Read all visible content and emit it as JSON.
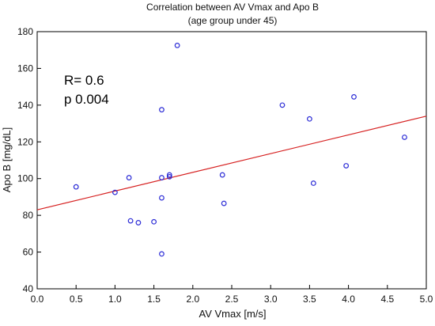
{
  "chart_data": {
    "type": "scatter",
    "title": "Correlation between AV Vmax and Apo B",
    "subtitle": "(age group under 45)",
    "xlabel": "AV Vmax [m/s]",
    "ylabel": "Apo B [mg/dL]",
    "xlim": [
      0.0,
      5.0
    ],
    "ylim": [
      40,
      180
    ],
    "x_ticks": [
      "0.0",
      "0.5",
      "1.0",
      "1.5",
      "2.0",
      "2.5",
      "3.0",
      "3.5",
      "4.0",
      "4.5",
      "5.0"
    ],
    "y_ticks": [
      "40",
      "60",
      "80",
      "100",
      "120",
      "140",
      "160",
      "180"
    ],
    "grid": false,
    "annotations": [
      "R= 0.6",
      "p 0.004"
    ],
    "points": [
      {
        "x": 0.5,
        "y": 95.5
      },
      {
        "x": 1.0,
        "y": 92.5
      },
      {
        "x": 1.18,
        "y": 100.5
      },
      {
        "x": 1.2,
        "y": 77
      },
      {
        "x": 1.3,
        "y": 76
      },
      {
        "x": 1.5,
        "y": 76.5
      },
      {
        "x": 1.6,
        "y": 137.5
      },
      {
        "x": 1.6,
        "y": 100.5
      },
      {
        "x": 1.6,
        "y": 89.5
      },
      {
        "x": 1.6,
        "y": 59
      },
      {
        "x": 1.7,
        "y": 102
      },
      {
        "x": 1.7,
        "y": 101
      },
      {
        "x": 1.8,
        "y": 172.5
      },
      {
        "x": 2.38,
        "y": 102
      },
      {
        "x": 2.4,
        "y": 86.5
      },
      {
        "x": 3.15,
        "y": 140
      },
      {
        "x": 3.5,
        "y": 132.5
      },
      {
        "x": 3.55,
        "y": 97.5
      },
      {
        "x": 3.97,
        "y": 107
      },
      {
        "x": 4.07,
        "y": 144.5
      },
      {
        "x": 4.72,
        "y": 122.5
      }
    ],
    "regression_line": {
      "x": [
        0.0,
        5.0
      ],
      "y": [
        83,
        134
      ]
    },
    "colors": {
      "point": "#2b2bd6",
      "line": "#d62020",
      "axis": "#000000",
      "text": "#111111"
    }
  }
}
